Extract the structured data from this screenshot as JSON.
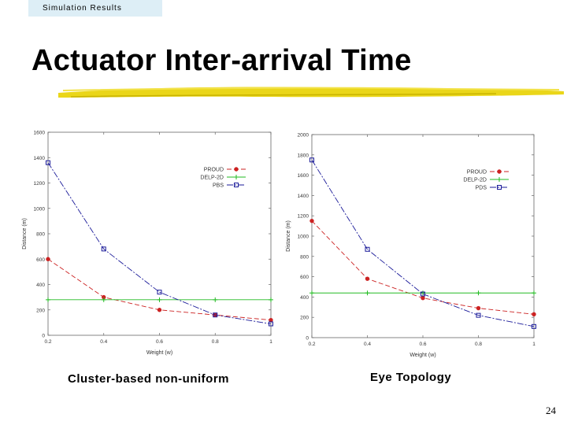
{
  "slide": {
    "section": "Simulation Results",
    "title": "Actuator Inter-arrival Time",
    "page_number": "24"
  },
  "colors": {
    "PROUD": "#cc2222",
    "DELP-2D": "#22bb22",
    "PBS": "#1a1a99",
    "PDS": "#1a1a99",
    "brush": "#e8d200"
  },
  "chart_data": [
    {
      "type": "line",
      "caption": "Cluster-based non-uniform",
      "xlabel": "Weight (w)",
      "ylabel": "Distance (m)",
      "xlim": [
        0.2,
        1
      ],
      "ylim": [
        0,
        1600
      ],
      "xticks": [
        "0.2",
        "0.4",
        "0.6",
        "0.8",
        "1"
      ],
      "yticks": [
        "0",
        "200",
        "400",
        "600",
        "800",
        "1000",
        "1200",
        "1400",
        "1600"
      ],
      "x": [
        0.2,
        0.4,
        0.6,
        0.8,
        1.0
      ],
      "legend": "top-right",
      "series": [
        {
          "name": "PROUD",
          "values": [
            600,
            300,
            200,
            160,
            120
          ],
          "dash": "6,3"
        },
        {
          "name": "DELP-2D",
          "values": [
            280,
            280,
            280,
            280,
            280
          ],
          "dash": ""
        },
        {
          "name": "PBS",
          "values": [
            1360,
            680,
            340,
            160,
            90
          ],
          "dash": "8,2,2,2"
        }
      ]
    },
    {
      "type": "line",
      "caption": "Eye Topology",
      "xlabel": "Weight (w)",
      "ylabel": "Distance (m)",
      "xlim": [
        0.2,
        1
      ],
      "ylim": [
        0,
        2000
      ],
      "xticks": [
        "0.2",
        "0.4",
        "0.6",
        "0.8",
        "1"
      ],
      "yticks": [
        "0",
        "200",
        "400",
        "600",
        "800",
        "1000",
        "1200",
        "1400",
        "1600",
        "1800",
        "2000"
      ],
      "x": [
        0.2,
        0.4,
        0.6,
        0.8,
        1.0
      ],
      "legend": "top-right",
      "series": [
        {
          "name": "PROUD",
          "values": [
            1150,
            580,
            390,
            290,
            230
          ],
          "dash": "6,3"
        },
        {
          "name": "DELP-2D",
          "values": [
            440,
            440,
            440,
            440,
            440
          ],
          "dash": ""
        },
        {
          "name": "PDS",
          "values": [
            1750,
            870,
            430,
            220,
            110
          ],
          "dash": "8,2,2,2"
        }
      ]
    }
  ]
}
